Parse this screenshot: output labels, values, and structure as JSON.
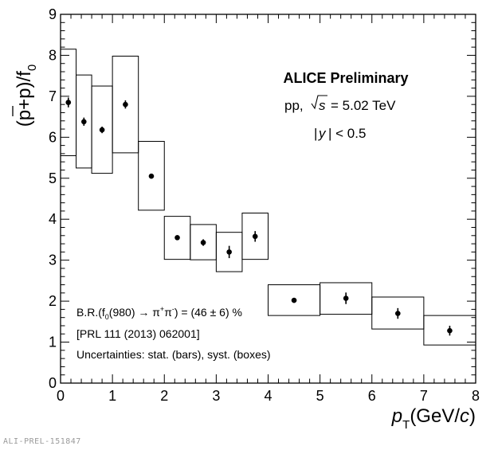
{
  "chart_data": {
    "type": "scatter",
    "title": "ALICE Preliminary",
    "subtitle_system": "pp,",
    "subtitle_energy": "= 5.02 TeV",
    "subtitle_rapidity": "| < 0.5",
    "xlabel": "p",
    "xlabel_sub": "T",
    "xlabel_unit": "(GeV/",
    "xlabel_unit_c": "c",
    "xlabel_close": ")",
    "ylabel": "(p+p)/f",
    "ylabel_sub": "0",
    "xlim": [
      0,
      8
    ],
    "ylim": [
      0,
      9
    ],
    "xticks": [
      0,
      1,
      2,
      3,
      4,
      5,
      6,
      7,
      8
    ],
    "yticks": [
      0,
      1,
      2,
      3,
      4,
      5,
      6,
      7,
      8,
      9
    ],
    "annotations": {
      "br_prefix": "B.R.(f",
      "br_sub": "0",
      "br_mid": "(980) → π",
      "br_sup1": "+",
      "br_pi": "π",
      "br_sup2": "-",
      "br_suffix": ") = (46 ± 6) %",
      "reference": "[PRL 111 (2013) 062001]",
      "uncertainties": "Uncertainties: stat. (bars), syst. (boxes)"
    },
    "points": [
      {
        "x": 0.15,
        "x_lo": 0.0,
        "x_hi": 0.3,
        "y": 6.85,
        "stat": 0.12,
        "syst_lo": 5.55,
        "syst_hi": 8.15
      },
      {
        "x": 0.45,
        "x_lo": 0.3,
        "x_hi": 0.6,
        "y": 6.38,
        "stat": 0.1,
        "syst_lo": 5.25,
        "syst_hi": 7.52
      },
      {
        "x": 0.8,
        "x_lo": 0.6,
        "x_hi": 1.0,
        "y": 6.18,
        "stat": 0.08,
        "syst_lo": 5.12,
        "syst_hi": 7.25
      },
      {
        "x": 1.25,
        "x_lo": 1.0,
        "x_hi": 1.5,
        "y": 6.8,
        "stat": 0.1,
        "syst_lo": 5.62,
        "syst_hi": 7.98
      },
      {
        "x": 1.75,
        "x_lo": 1.5,
        "x_hi": 2.0,
        "y": 5.05,
        "stat": 0.05,
        "syst_lo": 4.22,
        "syst_hi": 5.9
      },
      {
        "x": 2.25,
        "x_lo": 2.0,
        "x_hi": 2.5,
        "y": 3.55,
        "stat": 0.06,
        "syst_lo": 3.02,
        "syst_hi": 4.07
      },
      {
        "x": 2.75,
        "x_lo": 2.5,
        "x_hi": 3.0,
        "y": 3.43,
        "stat": 0.08,
        "syst_lo": 3.01,
        "syst_hi": 3.87
      },
      {
        "x": 3.25,
        "x_lo": 3.0,
        "x_hi": 3.5,
        "y": 3.2,
        "stat": 0.15,
        "syst_lo": 2.72,
        "syst_hi": 3.68
      },
      {
        "x": 3.75,
        "x_lo": 3.5,
        "x_hi": 4.0,
        "y": 3.58,
        "stat": 0.13,
        "syst_lo": 3.02,
        "syst_hi": 4.15
      },
      {
        "x": 4.5,
        "x_lo": 4.0,
        "x_hi": 5.0,
        "y": 2.02,
        "stat": 0.06,
        "syst_lo": 1.65,
        "syst_hi": 2.4
      },
      {
        "x": 5.5,
        "x_lo": 5.0,
        "x_hi": 6.0,
        "y": 2.07,
        "stat": 0.14,
        "syst_lo": 1.68,
        "syst_hi": 2.45
      },
      {
        "x": 6.5,
        "x_lo": 6.0,
        "x_hi": 7.0,
        "y": 1.7,
        "stat": 0.13,
        "syst_lo": 1.32,
        "syst_hi": 2.1
      },
      {
        "x": 7.5,
        "x_lo": 7.0,
        "x_hi": 8.0,
        "y": 1.28,
        "stat": 0.12,
        "syst_lo": 0.93,
        "syst_hi": 1.65
      }
    ],
    "grid": false,
    "legend": "none"
  },
  "footer": {
    "label": "ALI-PREL-151847"
  }
}
